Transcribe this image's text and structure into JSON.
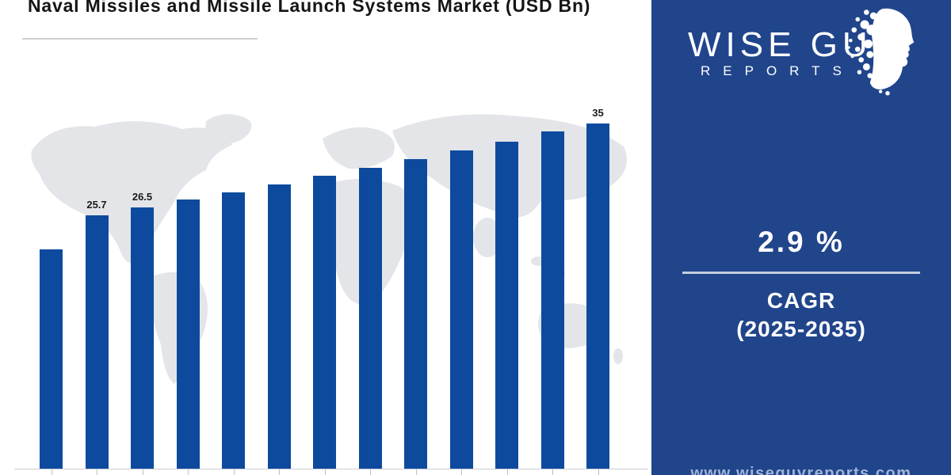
{
  "title": "Naval Missiles and Missile Launch Systems Market (USD Bn)",
  "chart_data": {
    "type": "bar",
    "title": "Naval Missiles and Missile Launch Systems Market (USD Bn)",
    "unit": "USD Bn",
    "categories": [
      "",
      "",
      "",
      "",
      "",
      "",
      "",
      "",
      "",
      "",
      "",
      "",
      ""
    ],
    "values": [
      22.3,
      25.7,
      26.5,
      27.3,
      28.0,
      28.8,
      29.7,
      30.5,
      31.4,
      32.3,
      33.2,
      34.2,
      35.0
    ],
    "bar_labels": [
      "",
      "25.7",
      "26.5",
      "",
      "",
      "",
      "",
      "",
      "",
      "",
      "",
      "",
      "35"
    ],
    "xlabel": "",
    "ylabel": "",
    "ylim": [
      0,
      47.5
    ],
    "grid": false,
    "legend": "none",
    "x_tick_labels_visible": false,
    "bar_color": "#0d4a9e",
    "note": "x-axis category labels are cropped below the bottom edge of the image; only axis ticks are visible"
  },
  "sidebar": {
    "logo": {
      "title": "WISE GUY",
      "subtitle": "REPORTS"
    },
    "cagr": {
      "value": "2.9 %",
      "label": "CAGR",
      "range": "(2025-2035)"
    },
    "website": "www.wiseguyreports.com"
  },
  "colors": {
    "bar": "#0d4a9e",
    "sidebar": "#21458b",
    "map": "#e3e5e9",
    "axis": "#c9cdd4",
    "title_text": "#151515",
    "cagr_divider": "#c3cedd",
    "website_text": "#9fb4d9"
  }
}
